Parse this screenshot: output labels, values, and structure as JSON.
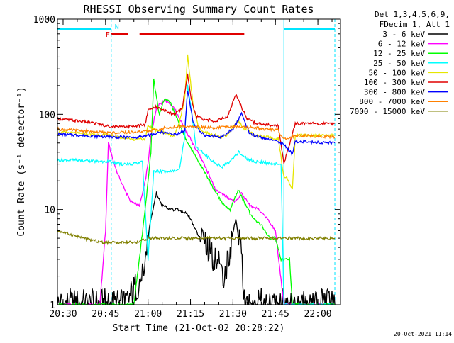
{
  "chart_data": {
    "type": "line",
    "title": "RHESSI Observing Summary Count Rates",
    "xlabel": "Start Time (21-Oct-02 20:28:22)",
    "ylabel": "Count Rate (s⁻¹ detector⁻¹)",
    "yscale": "log",
    "xlim": [
      "20:28",
      "22:08"
    ],
    "ylim": [
      1,
      1000
    ],
    "x_ticks": [
      "20:30",
      "20:45",
      "21:00",
      "21:15",
      "21:30",
      "21:45",
      "22:00"
    ],
    "y_ticks": [
      "1",
      "10",
      "100",
      "1000"
    ],
    "legend_position": "top-right",
    "legend_header": [
      "Det 1,3,4,5,6,9,",
      "FDecim 1, Att 1"
    ],
    "timestamp": "20-Oct-2021 11:14",
    "flags": {
      "N": {
        "label": "N",
        "color": "#00e5ff",
        "x_start": "20:28",
        "x_end": "20:47"
      },
      "N2": {
        "label": "",
        "color": "#00e5ff",
        "x_start": "21:48",
        "x_end": "22:06"
      },
      "F": {
        "label": "F",
        "color": "#e00000",
        "x_start": "20:47",
        "x_end": "20:53"
      },
      "F2": {
        "label": "",
        "color": "#e00000",
        "x_start": "20:57",
        "x_end": "21:34"
      }
    },
    "series": [
      {
        "name": "3 - 6 keV",
        "color": "#000000",
        "x": [
          "20:28",
          "20:46",
          "20:52",
          "20:58",
          "21:01",
          "21:03",
          "21:05",
          "21:08",
          "21:11",
          "21:14",
          "21:17",
          "21:20",
          "21:24",
          "21:27",
          "21:29",
          "21:31",
          "21:33",
          "21:34",
          "21:48",
          "22:06"
        ],
        "y": [
          1,
          1,
          1,
          2,
          8,
          15,
          11,
          10,
          10,
          9,
          6,
          4,
          3,
          2,
          4,
          8,
          3,
          1,
          1,
          1
        ]
      },
      {
        "name": "6 - 12 keV",
        "color": "#ff00ff",
        "x": [
          "20:28",
          "20:43",
          "20:45",
          "20:46",
          "20:48",
          "20:51",
          "20:54",
          "20:57",
          "20:59",
          "21:00",
          "21:01",
          "21:03",
          "21:06",
          "21:09",
          "21:12",
          "21:15",
          "21:18",
          "21:21",
          "21:24",
          "21:27",
          "21:31",
          "21:33",
          "21:36",
          "21:39",
          "21:42",
          "21:45",
          "21:48",
          "22:06"
        ],
        "y": [
          1,
          1,
          6,
          50,
          30,
          18,
          12,
          11,
          20,
          30,
          60,
          120,
          140,
          120,
          80,
          55,
          38,
          25,
          16,
          14,
          12,
          15,
          11,
          10,
          8,
          6,
          1,
          1
        ]
      },
      {
        "name": "12 - 25 keV",
        "color": "#00ff00",
        "x": [
          "20:28",
          "20:46",
          "20:55",
          "20:59",
          "21:01",
          "21:02",
          "21:04",
          "21:06",
          "21:08",
          "21:11",
          "21:14",
          "21:17",
          "21:20",
          "21:23",
          "21:26",
          "21:29",
          "21:31",
          "21:32",
          "21:34",
          "21:37",
          "21:40",
          "21:43",
          "21:45",
          "21:47",
          "21:50",
          "21:51",
          "22:06"
        ],
        "y": [
          1,
          1,
          1,
          10,
          40,
          230,
          100,
          150,
          130,
          80,
          50,
          35,
          25,
          17,
          12,
          10,
          14,
          16,
          12,
          8,
          7,
          5,
          5,
          3,
          3,
          1,
          1
        ]
      },
      {
        "name": "25 - 50 keV",
        "color": "#00ffff",
        "x": [
          "20:28",
          "20:35",
          "20:40",
          "20:46",
          "20:48",
          "20:51",
          "20:55",
          "20:58",
          "21:00",
          "21:02",
          "21:05",
          "21:08",
          "21:11",
          "21:13",
          "21:14",
          "21:15",
          "21:17",
          "21:20",
          "21:23",
          "21:26",
          "21:29",
          "21:32",
          "21:35",
          "21:38",
          "21:41",
          "21:45",
          "21:47",
          "21:48",
          "22:06"
        ],
        "y": [
          33,
          33,
          32,
          32,
          31,
          30,
          30,
          32,
          3,
          25,
          25,
          25,
          26,
          60,
          200,
          130,
          45,
          38,
          32,
          28,
          32,
          40,
          34,
          32,
          31,
          30,
          30,
          1,
          1
        ]
      },
      {
        "name": "50 - 100 keV",
        "color": "#e6e600",
        "x": [
          "20:28",
          "20:46",
          "20:55",
          "20:59",
          "21:00",
          "21:03",
          "21:06",
          "21:09",
          "21:11",
          "21:13",
          "21:14",
          "21:16",
          "21:18",
          "21:22",
          "21:26",
          "21:28",
          "21:30",
          "21:32",
          "21:34",
          "21:38",
          "21:42",
          "21:46",
          "21:48",
          "21:49",
          "21:51",
          "21:52",
          "22:06"
        ],
        "y": [
          65,
          60,
          55,
          55,
          75,
          68,
          65,
          58,
          80,
          150,
          420,
          120,
          70,
          62,
          58,
          60,
          75,
          85,
          70,
          60,
          58,
          56,
          22,
          22,
          16,
          60,
          60
        ]
      },
      {
        "name": "100 - 300 keV",
        "color": "#e00000",
        "x": [
          "20:28",
          "20:40",
          "20:46",
          "20:55",
          "20:59",
          "21:00",
          "21:03",
          "21:06",
          "21:09",
          "21:12",
          "21:14",
          "21:15",
          "21:17",
          "21:20",
          "21:24",
          "21:28",
          "21:31",
          "21:33",
          "21:35",
          "21:38",
          "21:42",
          "21:46",
          "21:48",
          "21:52",
          "22:06"
        ],
        "y": [
          90,
          82,
          75,
          75,
          78,
          110,
          120,
          110,
          100,
          115,
          260,
          160,
          95,
          88,
          85,
          95,
          160,
          120,
          90,
          80,
          78,
          76,
          30,
          80,
          80
        ]
      },
      {
        "name": "300 - 800 keV",
        "color": "#0000ff",
        "x": [
          "20:28",
          "20:46",
          "20:55",
          "21:00",
          "21:05",
          "21:10",
          "21:13",
          "21:14",
          "21:16",
          "21:20",
          "21:26",
          "21:30",
          "21:33",
          "21:36",
          "21:42",
          "21:46",
          "21:48",
          "21:51",
          "21:52",
          "22:06"
        ],
        "y": [
          62,
          58,
          57,
          60,
          65,
          62,
          68,
          180,
          80,
          60,
          58,
          70,
          100,
          62,
          55,
          52,
          48,
          38,
          52,
          50
        ]
      },
      {
        "name": "800 - 7000 keV",
        "color": "#ff8000",
        "x": [
          "20:28",
          "20:40",
          "20:46",
          "20:55",
          "21:00",
          "21:06",
          "21:12",
          "21:18",
          "21:24",
          "21:30",
          "21:36",
          "21:42",
          "21:46",
          "21:48",
          "21:52",
          "22:06"
        ],
        "y": [
          70,
          66,
          64,
          65,
          66,
          72,
          75,
          74,
          72,
          74,
          73,
          70,
          68,
          55,
          60,
          58
        ]
      },
      {
        "name": "7000 - 15000 keV",
        "color": "#808000",
        "x": [
          "20:28",
          "20:37",
          "20:44",
          "20:48",
          "20:52",
          "20:56",
          "21:00",
          "21:06",
          "21:12",
          "21:18",
          "21:24",
          "21:30",
          "21:33",
          "21:36",
          "21:42",
          "21:46",
          "21:48",
          "21:52",
          "22:06"
        ],
        "y": [
          6,
          5,
          4.5,
          4.5,
          4.5,
          4.5,
          5,
          5,
          5,
          5,
          5,
          5,
          5,
          5,
          5,
          5,
          5,
          5,
          5
        ]
      }
    ]
  }
}
